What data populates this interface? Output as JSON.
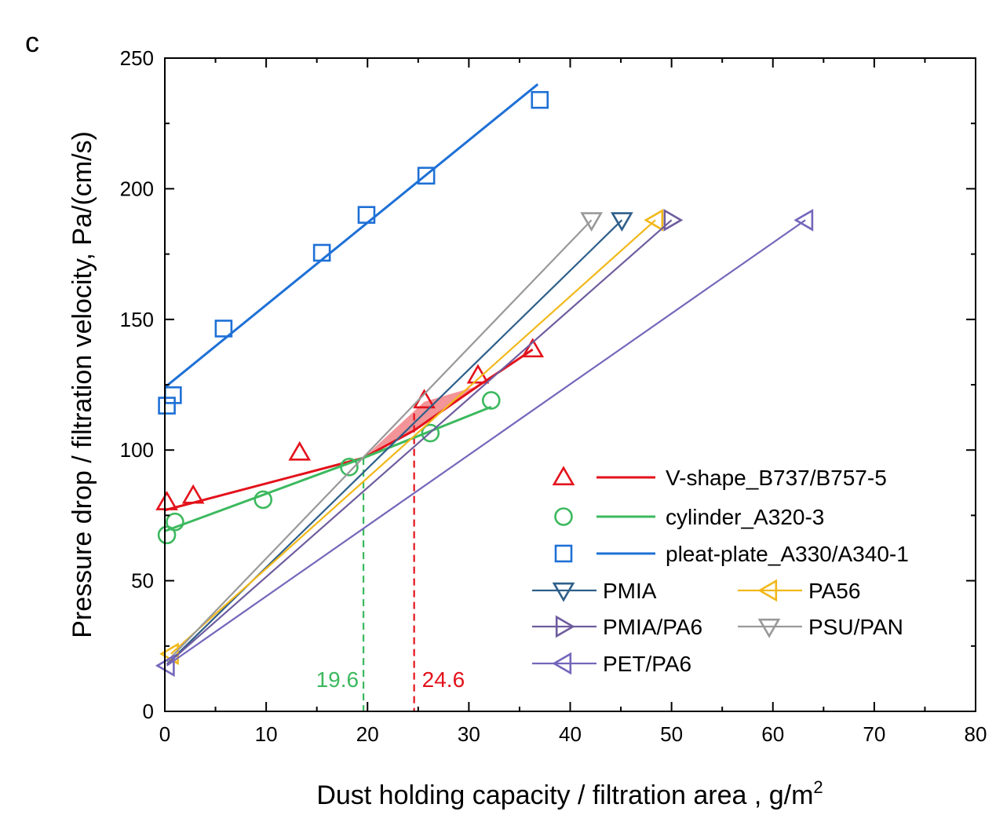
{
  "panel_label": "c",
  "chart_data": {
    "type": "scatter",
    "title": "",
    "xlabel": "Dust holding capacity / filtration area , g/m",
    "xlabel_superscript": "2",
    "ylabel": "Pressure drop / filtration velocity, Pa/(cm/s)",
    "xlim": [
      0,
      80
    ],
    "ylim": [
      0,
      250
    ],
    "xticks": [
      0,
      10,
      20,
      30,
      40,
      50,
      60,
      70,
      80
    ],
    "yticks": [
      0,
      50,
      100,
      150,
      200,
      250
    ],
    "series": [
      {
        "name": "V-shape_B737/B757-5",
        "color": "#e3121b",
        "marker": "triangle-up",
        "points": [
          [
            0.2,
            80
          ],
          [
            2.8,
            82.5
          ],
          [
            13.3,
            99
          ],
          [
            25.6,
            119
          ],
          [
            30.9,
            128.5
          ],
          [
            36.3,
            138.5
          ]
        ],
        "fit": [
          [
            0,
            77
          ],
          [
            19.6,
            97
          ],
          [
            24.6,
            107.5
          ],
          [
            30.9,
            124.5
          ],
          [
            36.3,
            138.5
          ]
        ]
      },
      {
        "name": "cylinder_A320-3",
        "color": "#3cb95e",
        "marker": "circle",
        "points": [
          [
            0.2,
            67.5
          ],
          [
            1.0,
            72.5
          ],
          [
            9.7,
            81
          ],
          [
            18.2,
            93.5
          ],
          [
            26.2,
            106.5
          ],
          [
            32.2,
            119
          ]
        ],
        "fit": [
          [
            0,
            69
          ],
          [
            19.6,
            97
          ],
          [
            32.2,
            116.5
          ]
        ]
      },
      {
        "name": "pleat-plate_A330/A340-1",
        "color": "#1e70d6",
        "marker": "square",
        "points": [
          [
            0.2,
            117
          ],
          [
            0.8,
            121
          ],
          [
            5.8,
            146.5
          ],
          [
            15.5,
            175.5
          ],
          [
            19.9,
            190
          ],
          [
            25.8,
            205
          ],
          [
            37.0,
            234
          ]
        ],
        "fit": [
          [
            0,
            124
          ],
          [
            36.8,
            240
          ]
        ]
      },
      {
        "name": "PMIA",
        "color": "#2e5f8a",
        "marker": "triangle-down",
        "points": [
          [
            45.1,
            188
          ]
        ],
        "fit": [
          [
            0.2,
            18
          ],
          [
            45.1,
            188
          ]
        ]
      },
      {
        "name": "PA56",
        "color": "#f2b81b",
        "marker": "triangle-left",
        "points": [
          [
            48.4,
            188
          ],
          [
            0.6,
            22
          ]
        ],
        "fit": [
          [
            0.6,
            22
          ],
          [
            48.4,
            188
          ]
        ]
      },
      {
        "name": "PMIA/PA6",
        "color": "#6e5c9e",
        "marker": "triangle-right",
        "points": [
          [
            50.0,
            188
          ]
        ],
        "fit": [
          [
            0.2,
            18
          ],
          [
            50.0,
            188
          ]
        ]
      },
      {
        "name": "PSU/PAN",
        "color": "#999999",
        "marker": "triangle-down",
        "points": [
          [
            42.1,
            188
          ]
        ],
        "fit": [
          [
            0.2,
            19
          ],
          [
            42.1,
            188
          ]
        ]
      },
      {
        "name": "PET/PA6",
        "color": "#7466bb",
        "marker": "triangle-left",
        "points": [
          [
            63.2,
            188
          ],
          [
            0.2,
            17.5
          ]
        ],
        "fit": [
          [
            0.2,
            17.5
          ],
          [
            63.2,
            188
          ]
        ]
      }
    ],
    "shaded_region": {
      "color": "#e3121b",
      "opacity": 0.45,
      "polygon": [
        [
          19.6,
          97
        ],
        [
          24.6,
          107.5
        ],
        [
          30.9,
          124.5
        ],
        [
          25.6,
          118.5
        ],
        [
          19.6,
          97
        ]
      ]
    },
    "annotations": [
      {
        "x": 19.6,
        "label": "19.6",
        "color": "#3cb95e",
        "y_top": 97
      },
      {
        "x": 24.6,
        "label": "24.6",
        "color": "#e3121b",
        "y_top": 114
      }
    ],
    "legend_position": "bottom-right"
  }
}
